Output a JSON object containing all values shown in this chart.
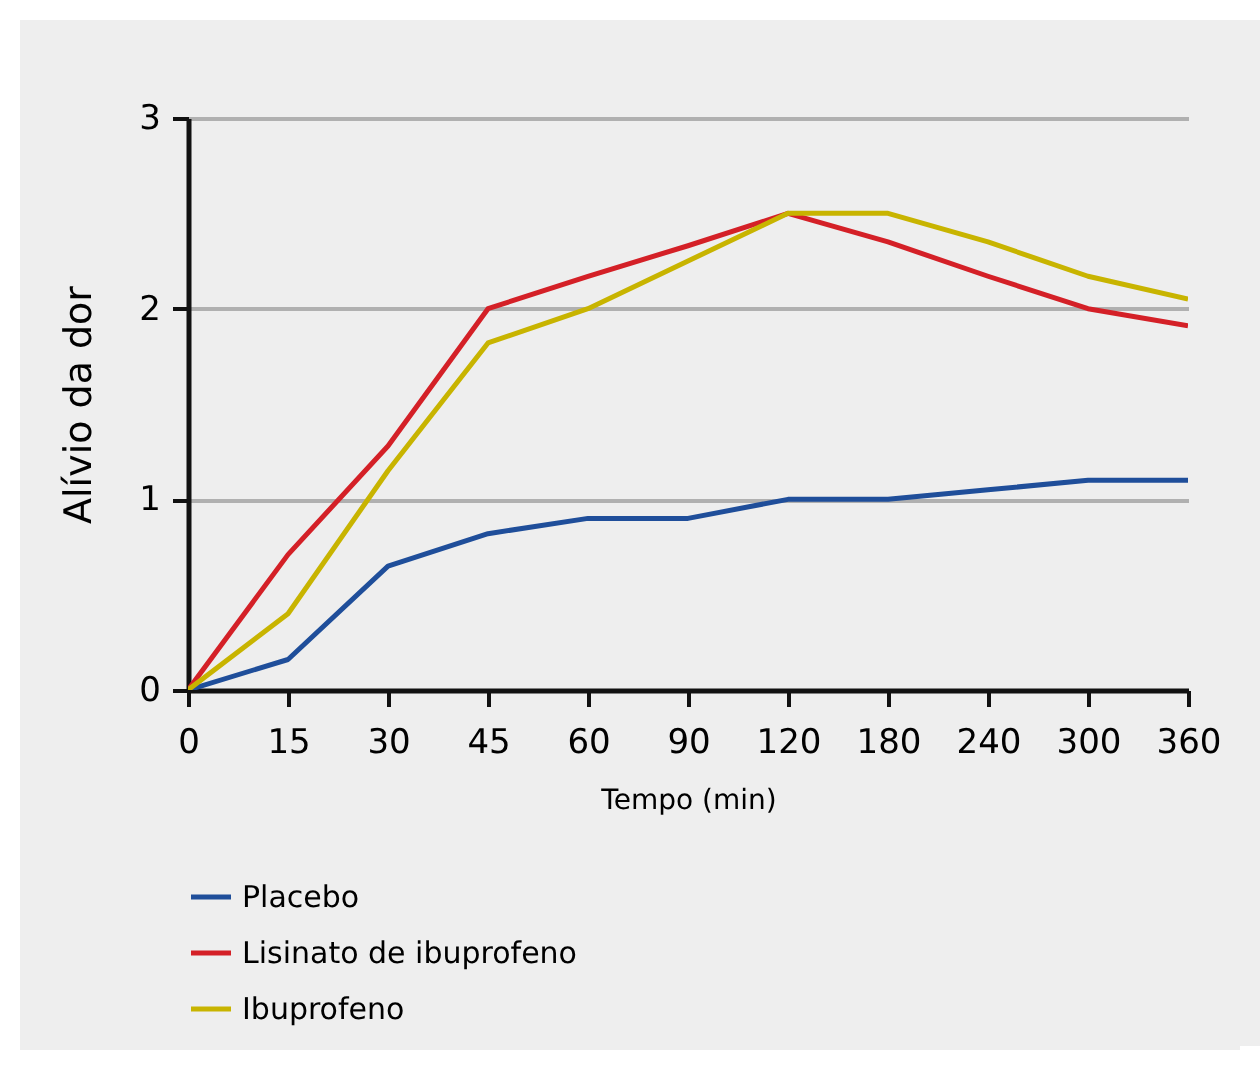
{
  "chart_data": {
    "type": "line",
    "xlabel": "Tempo (min)",
    "ylabel": "Alívio da dor",
    "categories": [
      "0",
      "15",
      "30",
      "45",
      "60",
      "90",
      "120",
      "180",
      "240",
      "300",
      "360"
    ],
    "series": [
      {
        "name": "Placebo",
        "color": "#1f4e9a",
        "values": [
          0,
          0.16,
          0.65,
          0.82,
          0.9,
          0.9,
          1.0,
          1.0,
          1.05,
          1.1,
          1.1
        ]
      },
      {
        "name": "Lisinato de ibuprofeno",
        "color": "#d42027",
        "values": [
          0,
          0.71,
          1.28,
          2.0,
          2.17,
          2.33,
          2.5,
          2.35,
          2.17,
          2.0,
          1.91
        ]
      },
      {
        "name": "Ibuprofeno",
        "color": "#c8b400",
        "values": [
          0,
          0.4,
          1.15,
          1.82,
          2.0,
          2.25,
          2.5,
          2.5,
          2.35,
          2.17,
          2.05
        ]
      }
    ],
    "ylim": [
      0,
      3
    ],
    "yticks": [
      0,
      1,
      2,
      3
    ],
    "grid": "y",
    "legend": "bottom",
    "marker": "none",
    "line_style": "solid"
  }
}
